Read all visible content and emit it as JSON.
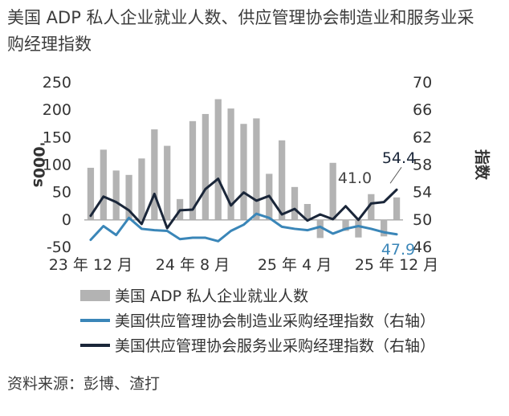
{
  "title": "美国 ADP 私人企业就业人数、供应管理协会制造业和服务业采购经理指数",
  "source": "资料来源：彭博、渣打",
  "chart_data": {
    "type": "bar+line",
    "left_axis": {
      "label": "'000s",
      "min": -50,
      "max": 250,
      "ticks": [
        -50,
        0,
        50,
        100,
        150,
        200,
        250
      ]
    },
    "right_axis": {
      "label": "指数",
      "min": 46,
      "max": 70,
      "ticks": [
        46,
        50,
        54,
        58,
        62,
        66,
        70
      ]
    },
    "x_tick_labels": [
      "23 年 12 月",
      "24 年 8 月",
      "25 年 4 月",
      "25 年 12 月"
    ],
    "x_tick_index": [
      0,
      8,
      16,
      24
    ],
    "series": [
      {
        "name": "美国 ADP 私人企业就业人数",
        "type": "bar",
        "axis": "left",
        "color": "#b3b3b3",
        "values": [
          95,
          128,
          90,
          82,
          112,
          165,
          135,
          38,
          180,
          193,
          220,
          203,
          175,
          185,
          84,
          145,
          60,
          29,
          -33,
          104,
          -20,
          -32,
          47,
          -30,
          41
        ]
      },
      {
        "name": "美国供应管理协会制造业采购经理指数（右轴）",
        "type": "line",
        "axis": "right",
        "color": "#3a86b8",
        "values": [
          47.1,
          49.1,
          47.8,
          50.3,
          48.7,
          48.5,
          48.4,
          47.2,
          47.4,
          47.4,
          46.9,
          48.4,
          49.3,
          50.9,
          50.3,
          49.0,
          48.7,
          48.5,
          49.0,
          48.0,
          48.7,
          49.1,
          48.7,
          48.2,
          47.9
        ]
      },
      {
        "name": "美国供应管理协会服务业采购经理指数（右轴）",
        "type": "line",
        "axis": "right",
        "color": "#1a2639",
        "values": [
          50.6,
          53.4,
          52.6,
          51.4,
          49.4,
          53.8,
          48.8,
          51.4,
          51.5,
          54.5,
          56.0,
          52.1,
          54.0,
          52.8,
          53.5,
          50.8,
          51.6,
          49.9,
          50.8,
          50.1,
          52.0,
          50.0,
          52.4,
          52.6,
          54.4
        ]
      }
    ],
    "annotations": [
      {
        "series": 2,
        "index": 24,
        "text": "54.4"
      },
      {
        "series": 0,
        "index": 24,
        "text": "41.0"
      },
      {
        "series": 1,
        "index": 24,
        "text": "47.9"
      }
    ]
  }
}
